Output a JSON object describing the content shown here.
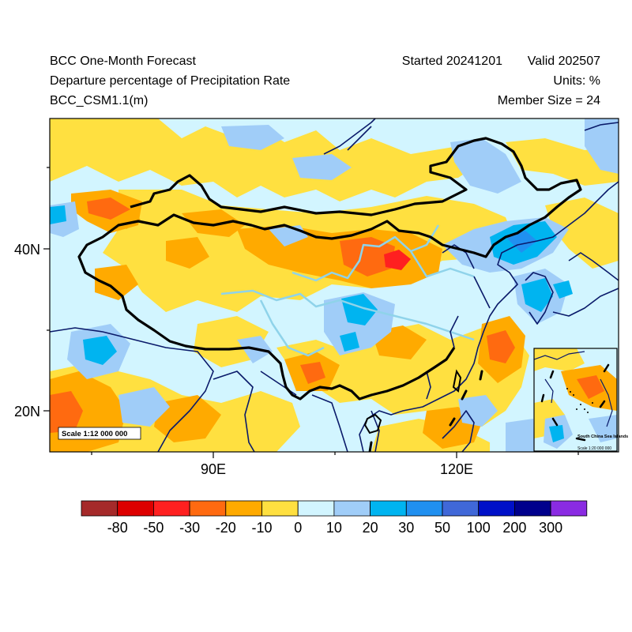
{
  "header": {
    "title_line1": "BCC One-Month Forecast",
    "title_line2": "Departure percentage of Precipitation Rate",
    "title_line3": "BCC_CSM1.1(m)",
    "started": "Started 20241201",
    "valid": "Valid 202507",
    "units": "Units: %",
    "member_size": "Member Size = 24"
  },
  "map": {
    "lat_labels": [
      "40N",
      "20N"
    ],
    "lon_labels": [
      "90E",
      "120E"
    ],
    "scale_note": "Scale 1:12 000 000",
    "inset_title": "South China Sea Islands",
    "inset_scale": "Scale 1:20 000 000"
  },
  "colorbar": {
    "labels": [
      "-80",
      "-50",
      "-30",
      "-20",
      "-10",
      "0",
      "10",
      "20",
      "30",
      "50",
      "100",
      "200",
      "300"
    ],
    "colors": [
      "#a52a2a",
      "#dd0000",
      "#ff2020",
      "#ff6a10",
      "#ffaa00",
      "#ffe040",
      "#d2f5ff",
      "#a0cdf8",
      "#00b4f0",
      "#2090f0",
      "#4068d8",
      "#0010c8",
      "#00008c",
      "#8a2be2"
    ]
  },
  "field_colors": {
    "light_blue": "#d2f5ff",
    "yellow": "#ffe040",
    "orange": "#ffaa00",
    "dark_orange": "#ff6a10",
    "red": "#ff2020",
    "blue20": "#a0cdf8",
    "blue30": "#00b4f0",
    "blue50": "#2090f0",
    "border": "#000000",
    "river": "#8fd3ea",
    "coast": "#0a1a6a"
  }
}
